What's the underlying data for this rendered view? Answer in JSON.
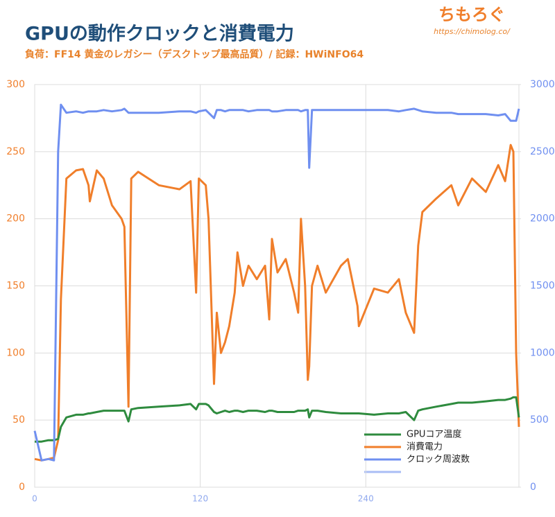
{
  "brand": {
    "name": "ちもろぐ",
    "url": "https://chimolog.co/"
  },
  "chart_data": {
    "type": "line",
    "title": "GPUの動作クロックと消費電力",
    "subtitle": "負荷：FF14 黄金のレガシー（デスクトップ最高品質）/ 記録：HWiNFO64",
    "x": [
      0,
      5,
      10,
      14,
      17,
      19,
      23,
      30,
      35,
      39,
      40,
      45,
      50,
      56,
      63,
      65,
      68,
      70,
      75,
      90,
      105,
      113,
      117,
      119,
      124,
      126,
      130,
      132,
      135,
      138,
      141,
      145,
      147,
      151,
      155,
      161,
      167,
      170,
      172,
      176,
      182,
      188,
      191,
      193,
      196,
      198,
      199,
      201,
      205,
      211,
      222,
      227,
      234,
      235,
      246,
      256,
      264,
      269,
      275,
      278,
      281,
      291,
      302,
      307,
      317,
      327,
      336,
      341,
      345,
      347,
      349,
      351
    ],
    "xlim": [
      0,
      351
    ],
    "xticks": [
      0,
      120,
      240
    ],
    "ylim": [
      0,
      300
    ],
    "yticks": [
      0,
      50,
      100,
      150,
      200,
      250,
      300
    ],
    "y2lim": [
      0,
      3000
    ],
    "y2ticks": [
      0,
      500,
      1000,
      1500,
      2000,
      2500,
      3000
    ],
    "grid": true,
    "legend": "lower-right",
    "series": [
      {
        "name": "GPUコア温度",
        "color": "#2e8b3e",
        "axis": "y",
        "values": [
          34,
          34,
          35,
          35,
          36,
          45,
          52,
          54,
          54,
          55,
          55,
          56,
          57,
          57,
          57,
          57,
          49,
          58,
          59,
          60,
          61,
          62,
          58,
          62,
          62,
          61,
          56,
          55,
          56,
          57,
          56,
          57,
          57,
          56,
          57,
          57,
          56,
          57,
          57,
          56,
          56,
          56,
          57,
          57,
          57,
          58,
          52,
          57,
          57,
          56,
          55,
          55,
          55,
          55,
          54,
          55,
          55,
          56,
          50,
          57,
          58,
          60,
          62,
          63,
          63,
          64,
          65,
          65,
          66,
          67,
          67,
          52
        ]
      },
      {
        "name": "消費電力",
        "color": "#f07e2a",
        "axis": "y",
        "values": [
          21,
          20,
          21,
          22,
          35,
          140,
          230,
          236,
          237,
          225,
          213,
          236,
          230,
          210,
          200,
          194,
          60,
          230,
          235,
          225,
          222,
          228,
          145,
          230,
          225,
          200,
          77,
          130,
          100,
          108,
          120,
          145,
          175,
          150,
          165,
          155,
          165,
          125,
          185,
          160,
          170,
          145,
          130,
          200,
          150,
          80,
          90,
          150,
          165,
          145,
          165,
          170,
          135,
          120,
          148,
          145,
          155,
          130,
          115,
          180,
          205,
          215,
          225,
          210,
          230,
          220,
          240,
          228,
          255,
          250,
          100,
          45
        ]
      },
      {
        "name": "クロック周波数",
        "color": "#6f8ff0",
        "axis": "y2",
        "values": [
          420,
          200,
          210,
          200,
          2500,
          2850,
          2790,
          2800,
          2790,
          2800,
          2800,
          2800,
          2810,
          2800,
          2810,
          2820,
          2790,
          2790,
          2790,
          2790,
          2800,
          2800,
          2790,
          2800,
          2810,
          2790,
          2750,
          2810,
          2810,
          2800,
          2810,
          2810,
          2810,
          2810,
          2800,
          2810,
          2810,
          2810,
          2800,
          2800,
          2810,
          2810,
          2810,
          2800,
          2810,
          2810,
          2380,
          2810,
          2810,
          2810,
          2810,
          2810,
          2810,
          2810,
          2810,
          2810,
          2800,
          2810,
          2820,
          2810,
          2800,
          2790,
          2790,
          2780,
          2780,
          2780,
          2770,
          2780,
          2730,
          2730,
          2730,
          2820
        ]
      }
    ]
  }
}
